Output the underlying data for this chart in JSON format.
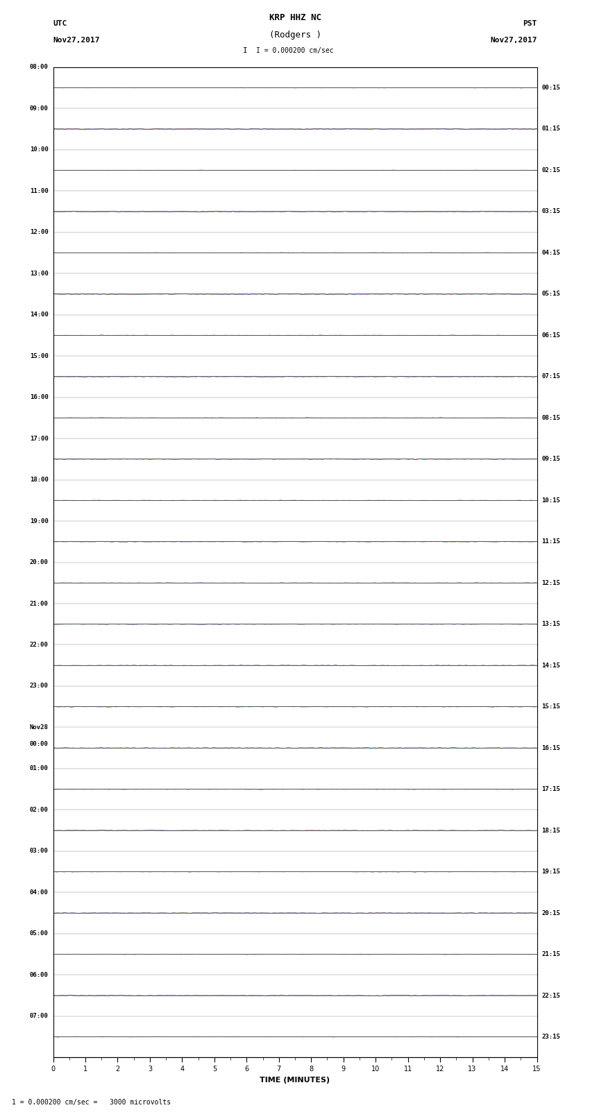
{
  "title_line1": "KRP HHZ NC",
  "title_line2": "(Rodgers )",
  "scale_label": "I = 0.000200 cm/sec",
  "left_timezone": "UTC",
  "left_date": "Nov27,2017",
  "right_timezone": "PST",
  "right_date": "Nov27,2017",
  "bottom_label": "TIME (MINUTES)",
  "bottom_note": "1 = 0.000200 cm/sec =   3000 microvolts",
  "left_times": [
    "08:00",
    "09:00",
    "10:00",
    "11:00",
    "12:00",
    "13:00",
    "14:00",
    "15:00",
    "16:00",
    "17:00",
    "18:00",
    "19:00",
    "20:00",
    "21:00",
    "22:00",
    "23:00",
    "Nov28\n00:00",
    "01:00",
    "02:00",
    "03:00",
    "04:00",
    "05:00",
    "06:00",
    "07:00"
  ],
  "right_times": [
    "00:15",
    "01:15",
    "02:15",
    "03:15",
    "04:15",
    "05:15",
    "06:15",
    "07:15",
    "08:15",
    "09:15",
    "10:15",
    "11:15",
    "12:15",
    "13:15",
    "14:15",
    "15:15",
    "16:15",
    "17:15",
    "18:15",
    "19:15",
    "20:15",
    "21:15",
    "22:15",
    "23:15"
  ],
  "num_rows": 24,
  "minutes_per_row": 60,
  "x_max": 15,
  "colors": [
    "black",
    "red",
    "blue",
    "green"
  ],
  "background": "white",
  "fig_width": 8.5,
  "fig_height": 16.13,
  "dpi": 100
}
